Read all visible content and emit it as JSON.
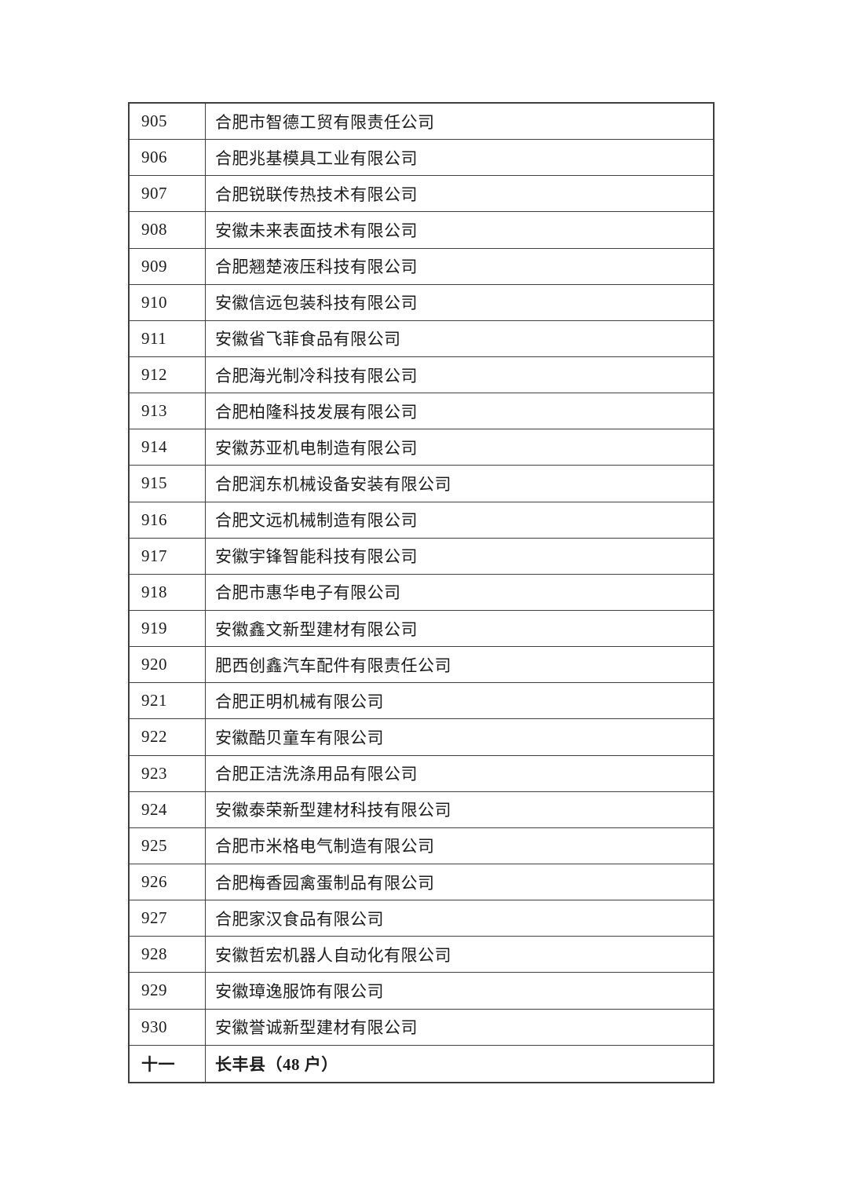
{
  "document": {
    "kind": "company-list-table-page",
    "colors": {
      "page_bg": "#ffffff",
      "border": "#3f3f3f",
      "text": "#1c1c1c"
    }
  },
  "table": {
    "rows": [
      {
        "no": "905",
        "name": "合肥市智德工贸有限责任公司",
        "bold": false
      },
      {
        "no": "906",
        "name": "合肥兆基模具工业有限公司",
        "bold": false
      },
      {
        "no": "907",
        "name": "合肥锐联传热技术有限公司",
        "bold": false
      },
      {
        "no": "908",
        "name": "安徽未来表面技术有限公司",
        "bold": false
      },
      {
        "no": "909",
        "name": "合肥翘楚液压科技有限公司",
        "bold": false
      },
      {
        "no": "910",
        "name": "安徽信远包装科技有限公司",
        "bold": false
      },
      {
        "no": "911",
        "name": "安徽省飞菲食品有限公司",
        "bold": false
      },
      {
        "no": "912",
        "name": "合肥海光制冷科技有限公司",
        "bold": false
      },
      {
        "no": "913",
        "name": "合肥柏隆科技发展有限公司",
        "bold": false
      },
      {
        "no": "914",
        "name": "安徽苏亚机电制造有限公司",
        "bold": false
      },
      {
        "no": "915",
        "name": "合肥润东机械设备安装有限公司",
        "bold": false
      },
      {
        "no": "916",
        "name": "合肥文远机械制造有限公司",
        "bold": false
      },
      {
        "no": "917",
        "name": "安徽宇锋智能科技有限公司",
        "bold": false
      },
      {
        "no": "918",
        "name": "合肥市惠华电子有限公司",
        "bold": false
      },
      {
        "no": "919",
        "name": "安徽鑫文新型建材有限公司",
        "bold": false
      },
      {
        "no": "920",
        "name": "肥西创鑫汽车配件有限责任公司",
        "bold": false
      },
      {
        "no": "921",
        "name": "合肥正明机械有限公司",
        "bold": false
      },
      {
        "no": "922",
        "name": "安徽酷贝童车有限公司",
        "bold": false
      },
      {
        "no": "923",
        "name": "合肥正洁洗涤用品有限公司",
        "bold": false
      },
      {
        "no": "924",
        "name": "安徽泰荣新型建材科技有限公司",
        "bold": false
      },
      {
        "no": "925",
        "name": "合肥市米格电气制造有限公司",
        "bold": false
      },
      {
        "no": "926",
        "name": "合肥梅香园禽蛋制品有限公司",
        "bold": false
      },
      {
        "no": "927",
        "name": "合肥家汉食品有限公司",
        "bold": false
      },
      {
        "no": "928",
        "name": "安徽哲宏机器人自动化有限公司",
        "bold": false
      },
      {
        "no": "929",
        "name": "安徽璋逸服饰有限公司",
        "bold": false
      },
      {
        "no": "930",
        "name": "安徽誉诚新型建材有限公司",
        "bold": false
      },
      {
        "no": "十一",
        "name": "长丰县（48 户）",
        "bold": true
      }
    ]
  }
}
